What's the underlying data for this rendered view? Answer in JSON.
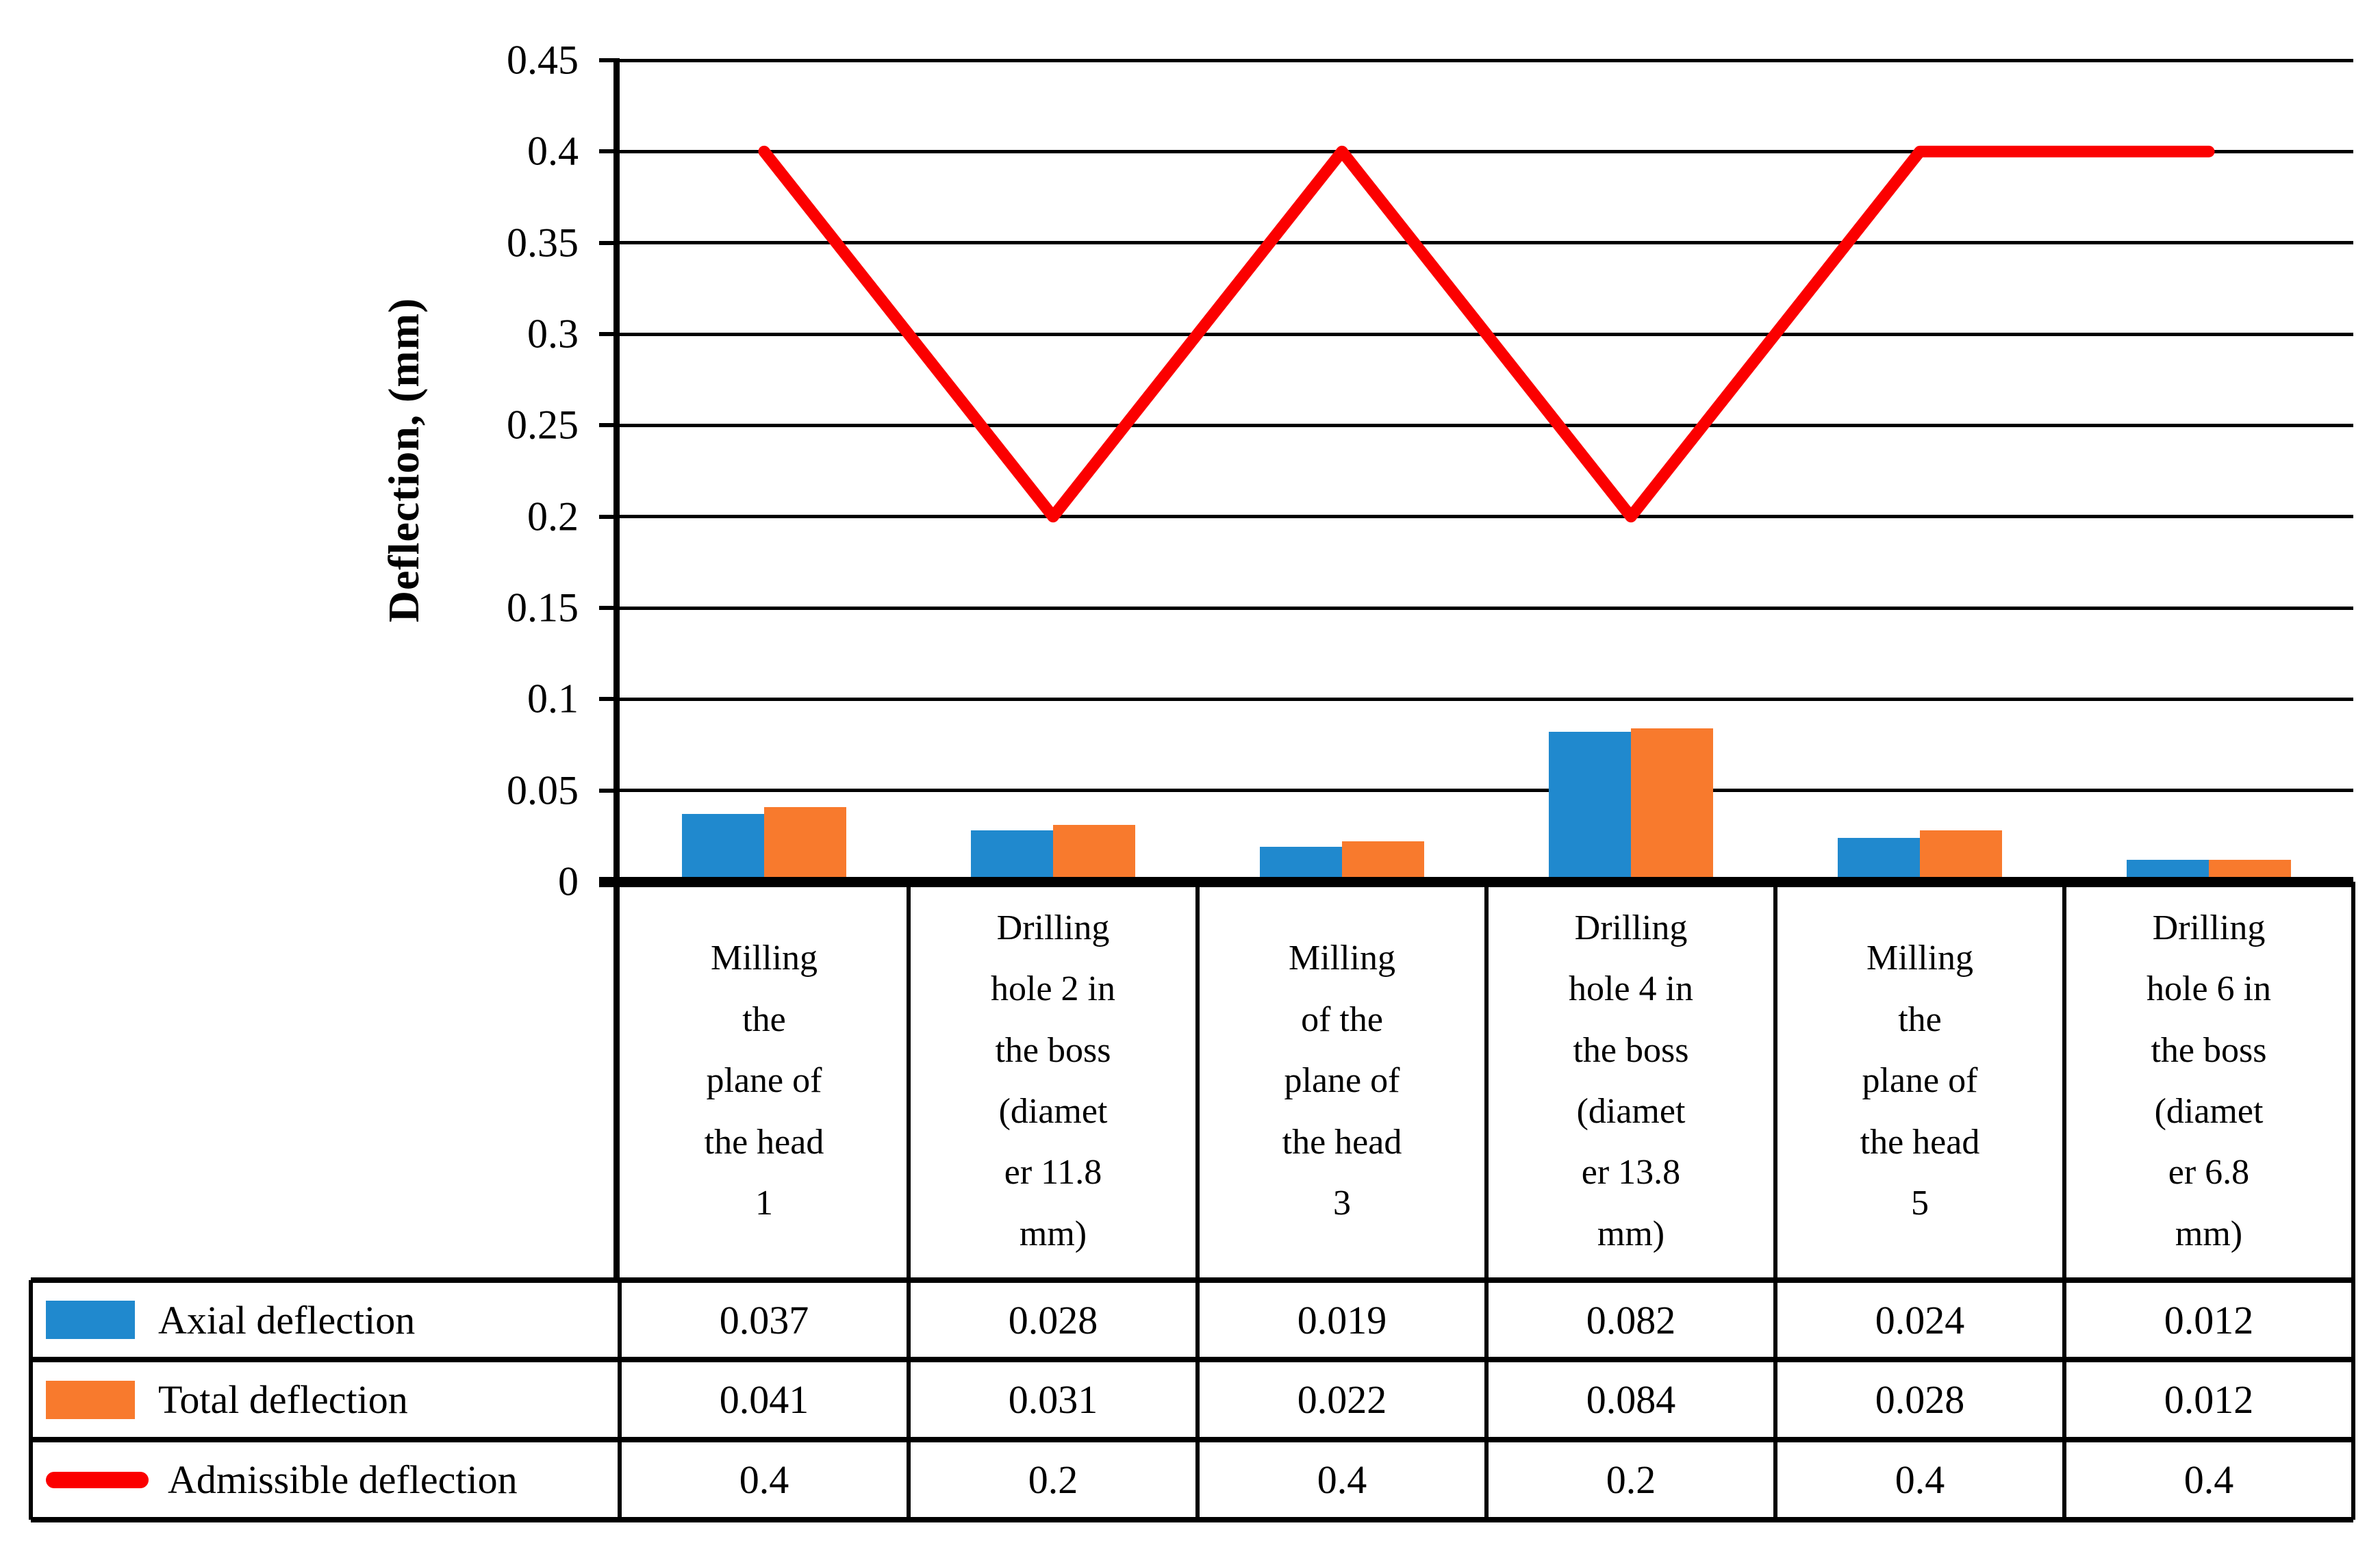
{
  "chart_data": {
    "type": "bar+line",
    "title": "",
    "ylabel": "Deflection, (mm)",
    "xlabel": "",
    "ylim": [
      0,
      0.45
    ],
    "ytick_step": 0.05,
    "yticks": [
      "0.45",
      "0.4",
      "0.35",
      "0.3",
      "0.25",
      "0.2",
      "0.15",
      "0.1",
      "0.05",
      "0"
    ],
    "grid": true,
    "legend_position": "table-left",
    "categories": [
      "Milling\nthe\nplane of\nthe head\n1",
      "Drilling\nhole 2 in\nthe boss\n(diamet\ner 11.8\nmm)",
      "Milling\nof the\nplane of\nthe head\n3",
      "Drilling\nhole 4 in\nthe boss\n(diamet\ner 13.8\nmm)",
      "Milling\nthe\nplane of\nthe head\n5",
      "Drilling\nhole 6 in\nthe boss\n(diamet\ner 6.8\nmm)"
    ],
    "series": [
      {
        "name": "Axial deflection",
        "type": "bar",
        "color": "#2089CE",
        "values": [
          0.037,
          0.028,
          0.019,
          0.082,
          0.024,
          0.012
        ],
        "display": [
          "0.037",
          "0.028",
          "0.019",
          "0.082",
          "0.024",
          "0.012"
        ]
      },
      {
        "name": "Total deflection",
        "type": "bar",
        "color": "#F87A2D",
        "values": [
          0.041,
          0.031,
          0.022,
          0.084,
          0.028,
          0.012
        ],
        "display": [
          "0.041",
          "0.031",
          "0.022",
          "0.084",
          "0.028",
          "0.012"
        ]
      },
      {
        "name": "Admissible deflection",
        "type": "line",
        "color": "#FB0000",
        "values": [
          0.4,
          0.2,
          0.4,
          0.2,
          0.4,
          0.4
        ],
        "display": [
          "0.4",
          "0.2",
          "0.4",
          "0.2",
          "0.4",
          "0.4"
        ]
      }
    ]
  }
}
